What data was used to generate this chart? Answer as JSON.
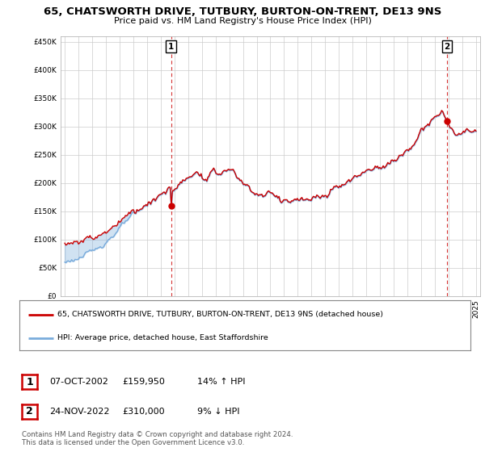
{
  "title": "65, CHATSWORTH DRIVE, TUTBURY, BURTON-ON-TRENT, DE13 9NS",
  "subtitle": "Price paid vs. HM Land Registry's House Price Index (HPI)",
  "legend_line1": "65, CHATSWORTH DRIVE, TUTBURY, BURTON-ON-TRENT, DE13 9NS (detached house)",
  "legend_line2": "HPI: Average price, detached house, East Staffordshire",
  "footnote": "Contains HM Land Registry data © Crown copyright and database right 2024.\nThis data is licensed under the Open Government Licence v3.0.",
  "marker1_date": "07-OCT-2002",
  "marker1_price": "£159,950",
  "marker1_hpi": "14% ↑ HPI",
  "marker2_date": "24-NOV-2022",
  "marker2_price": "£310,000",
  "marker2_hpi": "9% ↓ HPI",
  "red_color": "#cc0000",
  "blue_color": "#7aacdc",
  "fill_color": "#ddeeff",
  "background_color": "#ffffff",
  "grid_color": "#cccccc",
  "ylim": [
    0,
    460000
  ],
  "yticks": [
    0,
    50000,
    100000,
    150000,
    200000,
    250000,
    300000,
    350000,
    400000,
    450000
  ],
  "xstart_year": 1995,
  "xend_year": 2025,
  "sale1_year": 2002.75,
  "sale1_price": 159950,
  "sale2_year": 2022.875,
  "sale2_price": 310000
}
